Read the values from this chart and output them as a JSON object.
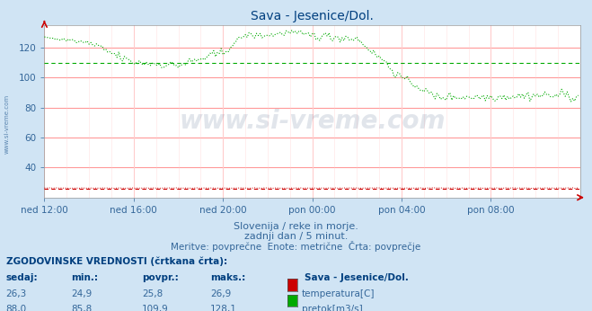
{
  "title": "Sava - Jesenice/Dol.",
  "title_color": "#003f7f",
  "bg_color": "#d0e4f4",
  "plot_bg_color": "#ffffff",
  "grid_color_h": "#ff9999",
  "grid_color_v": "#ffcccc",
  "xlabel_ticks": [
    "ned 12:00",
    "ned 16:00",
    "ned 20:00",
    "pon 00:00",
    "pon 04:00",
    "pon 08:00"
  ],
  "tick_color": "#336699",
  "ylim": [
    20,
    135
  ],
  "yticks": [
    40,
    60,
    80,
    100,
    120
  ],
  "subtitle1": "Slovenija / reke in morje.",
  "subtitle2": "zadnji dan / 5 minut.",
  "subtitle3": "Meritve: povprečne  Enote: metrične  Črta: povprečje",
  "subtitle_color": "#336699",
  "watermark": "www.si-vreme.com",
  "watermark_color": "#1a3a6a",
  "table_header": "ZGODOVINSKE VREDNOSTI (črtkana črta):",
  "table_cols": [
    "sedaj:",
    "min.:",
    "povpr.:",
    "maks.:"
  ],
  "table_col_extra": "Sava - Jesenice/Dol.",
  "row1_vals": [
    "26,3",
    "24,9",
    "25,8",
    "26,9"
  ],
  "row1_label": "temperatura[C]",
  "row1_color": "#cc0000",
  "row2_vals": [
    "88,0",
    "85,8",
    "109,9",
    "128,1"
  ],
  "row2_label": "pretok[m3/s]",
  "row2_color": "#00aa00",
  "temp_avg": 25.8,
  "flow_avg": 109.9,
  "temp_color": "#cc0000",
  "flow_color": "#00aa00",
  "watermark_alpha": 0.13,
  "side_label": "www.si-vreme.com",
  "side_label_color": "#336699"
}
